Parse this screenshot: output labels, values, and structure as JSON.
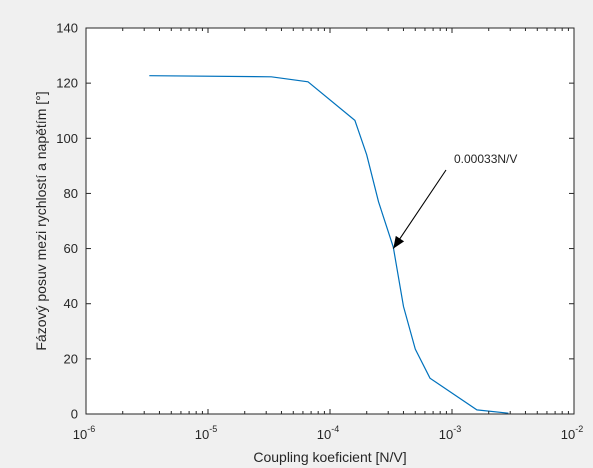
{
  "chart_data": {
    "type": "line",
    "xlabel": "Coupling koeficient [N/V]",
    "ylabel": "Fázový posuv mezi rychlostí a napětím [°]",
    "xscale": "log",
    "xlim": [
      1e-06,
      0.01
    ],
    "ylim": [
      0,
      140
    ],
    "x_ticks": [
      1e-06,
      1e-05,
      0.0001,
      0.001,
      0.01
    ],
    "x_tick_labels": [
      {
        "base": "10",
        "exp": "-6"
      },
      {
        "base": "10",
        "exp": "-5"
      },
      {
        "base": "10",
        "exp": "-4"
      },
      {
        "base": "10",
        "exp": "-3"
      },
      {
        "base": "10",
        "exp": "-2"
      }
    ],
    "y_ticks": [
      0,
      20,
      40,
      60,
      80,
      100,
      120,
      140
    ],
    "y_tick_labels": [
      "0",
      "20",
      "40",
      "60",
      "80",
      "100",
      "120",
      "140"
    ],
    "grid": false,
    "series": [
      {
        "color": "#0072bd",
        "x": [
          3.3e-06,
          3.3e-05,
          6.6e-05,
          0.00016,
          0.0002,
          0.00025,
          0.00033,
          0.0004,
          0.0005,
          0.00066,
          0.0016,
          0.0029
        ],
        "y": [
          122.7,
          122.3,
          120.5,
          106.5,
          94,
          77,
          60.5,
          39,
          23.5,
          13,
          1.5,
          0.3
        ]
      }
    ],
    "annotations": [
      {
        "text": "0.00033N/V",
        "arrow_to": {
          "x": 0.00033,
          "y": 60
        }
      }
    ]
  }
}
